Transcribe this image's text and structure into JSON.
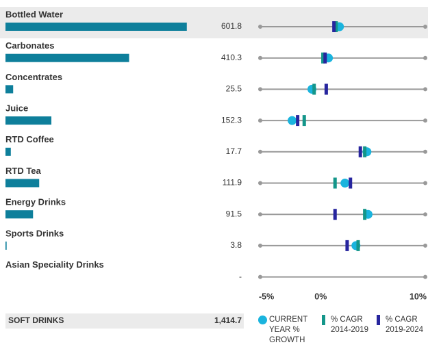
{
  "chart_data": {
    "type": "bar",
    "categories": [
      "Bottled Water",
      "Carbonates",
      "Concentrates",
      "Juice",
      "RTD Coffee",
      "RTD Tea",
      "Energy Drinks",
      "Sports Drinks",
      "Asian Speciality Drinks"
    ],
    "values": [
      601.8,
      410.3,
      25.5,
      152.3,
      17.7,
      111.9,
      91.5,
      3.8,
      null
    ],
    "value_labels": [
      "601.8",
      "410.3",
      "25.5",
      "152.3",
      "17.7",
      "111.9",
      "91.5",
      "3.8",
      "-"
    ],
    "color": "#0e7f9b",
    "series": [
      {
        "name": "CURRENT YEAR % GROWTH",
        "color": "#1ab4de",
        "values": [
          2.2,
          1.2,
          -0.3,
          -2.1,
          4.7,
          2.7,
          4.8,
          3.7,
          null
        ]
      },
      {
        "name": "% CAGR 2014-2019",
        "color": "#14968a",
        "values": [
          1.9,
          0.7,
          -0.1,
          -1.0,
          4.5,
          1.8,
          4.5,
          3.9,
          null
        ]
      },
      {
        "name": "% CAGR 2019-2024",
        "color": "#27259e",
        "values": [
          1.7,
          0.9,
          1.0,
          -1.6,
          4.1,
          3.2,
          1.8,
          2.9,
          null
        ]
      }
    ],
    "xlim": [
      -5,
      10
    ],
    "xticks": [
      {
        "value": -5,
        "label": "-5%"
      },
      {
        "value": 0,
        "label": "0%"
      },
      {
        "value": 10,
        "label": "10%"
      }
    ],
    "total": {
      "label": "SOFT DRINKS",
      "value": 1414.7,
      "value_label": "1,414.7"
    }
  }
}
